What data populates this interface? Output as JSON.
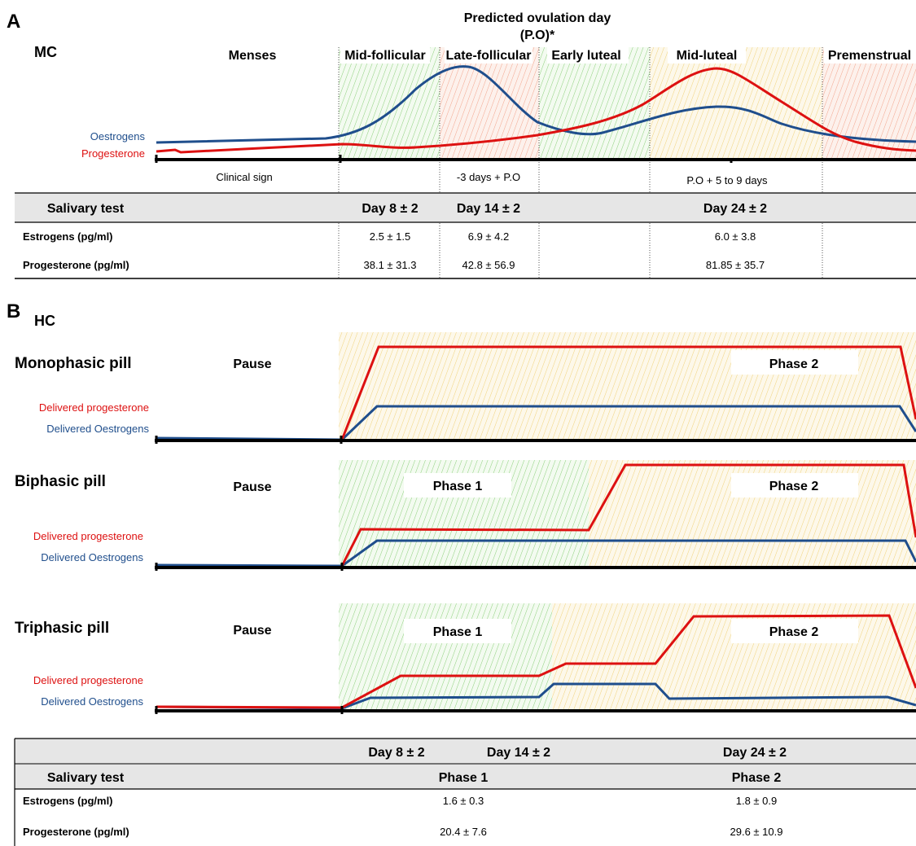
{
  "panel_a": {
    "letter": "A",
    "group": "MC",
    "ovulation_line1": "Predicted ovulation day",
    "ovulation_line2": "(P.O)*",
    "phases": [
      "Menses",
      "Mid-follicular",
      "Late-follicular",
      "Early luteal",
      "Mid-luteal",
      "Premenstrual"
    ],
    "hormone_labels": {
      "oestrogens": "Oestrogens",
      "progesterone": "Progesterone"
    },
    "timing": {
      "clinical": "Clinical sign",
      "late_follicular": "-3 days + P.O",
      "mid_luteal": "P.O + 5 to 9 days"
    },
    "table": {
      "header": "Salivary test",
      "days": [
        "Day 8 ± 2",
        "Day 14 ± 2",
        "Day 24 ± 2"
      ],
      "rows": [
        {
          "label": "Estrogens (pg/ml)",
          "values": [
            "2.5 ± 1.5",
            "6.9 ± 4.2",
            "6.0 ± 3.8"
          ]
        },
        {
          "label": "Progesterone (pg/ml)",
          "values": [
            "38.1 ± 31.3",
            "42.8 ± 56.9",
            "81.85 ± 35.7"
          ]
        }
      ]
    }
  },
  "panel_b": {
    "letter": "B",
    "group": "HC",
    "pills": [
      {
        "name": "Monophasic pill",
        "pause": "Pause",
        "phase1": "",
        "phase2": "Phase 2"
      },
      {
        "name": "Biphasic pill",
        "pause": "Pause",
        "phase1": "Phase 1",
        "phase2": "Phase 2"
      },
      {
        "name": "Triphasic pill",
        "pause": "Pause",
        "phase1": "Phase 1",
        "phase2": "Phase 2"
      }
    ],
    "delivered": {
      "progesterone": "Delivered progesterone",
      "oestrogens": "Delivered Oestrogens"
    },
    "table": {
      "days": [
        "Day 8 ± 2",
        "Day 14 ± 2",
        "Day 24 ± 2"
      ],
      "header": "Salivary test",
      "phases": [
        "Phase 1",
        "Phase 2"
      ],
      "rows": [
        {
          "label": "Estrogens (pg/ml)",
          "values": [
            "1.6 ± 0.3",
            "1.8 ± 0.9"
          ]
        },
        {
          "label": "Progesterone (pg/ml)",
          "values": [
            "20.4 ± 7.6",
            "29.6 ± 10.9"
          ]
        }
      ]
    }
  },
  "colors": {
    "oestrogens": "#1f4e8c",
    "progesterone": "#dd1111",
    "green_zone": "#8ccf7a",
    "red_zone": "#f2a48c",
    "yellow_zone": "#f0d27a"
  }
}
